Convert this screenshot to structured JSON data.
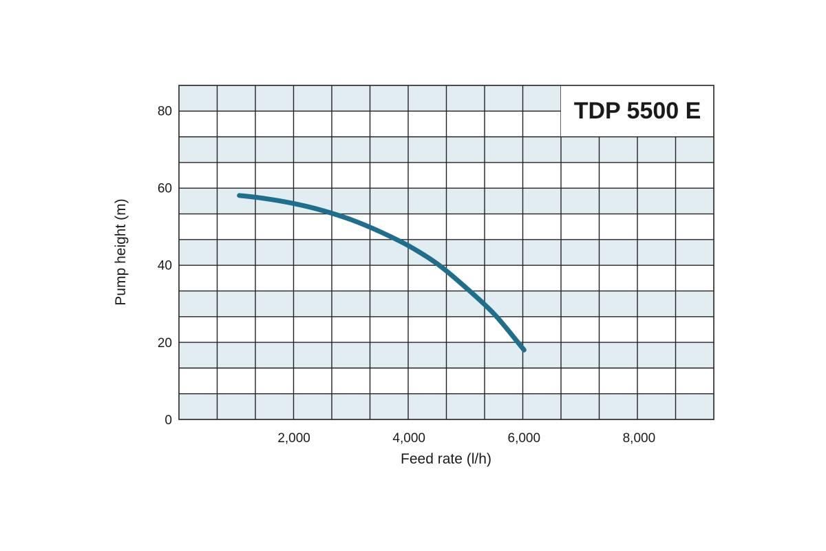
{
  "chart_data": {
    "type": "line",
    "title": "TDP 5500 E",
    "xlabel": "Feed rate (l/h)",
    "ylabel": "Pump height (m)",
    "x_ticks": [
      {
        "value": 2000,
        "label": "2,000"
      },
      {
        "value": 4000,
        "label": "4,000"
      },
      {
        "value": 6000,
        "label": "6,000"
      },
      {
        "value": 8000,
        "label": "8,000"
      }
    ],
    "y_ticks": [
      {
        "value": 0,
        "label": "0"
      },
      {
        "value": 20,
        "label": "20"
      },
      {
        "value": 40,
        "label": "40"
      },
      {
        "value": 60,
        "label": "60"
      },
      {
        "value": 80,
        "label": "80"
      }
    ],
    "xlim": [
      0,
      9300
    ],
    "ylim": [
      0,
      86.5
    ],
    "grid": true,
    "legend": "none",
    "colors": {
      "curve": "#1e6f8e",
      "band": "#e1edf0",
      "grid": "#222222"
    },
    "series": [
      {
        "x": [
          1050,
          1500,
          2000,
          2500,
          3000,
          3500,
          4000,
          4500,
          5000,
          5500,
          6000
        ],
        "y": [
          58,
          57.2,
          55.9,
          54.1,
          51.7,
          48.6,
          44.9,
          40.2,
          34,
          27,
          18
        ]
      }
    ]
  }
}
